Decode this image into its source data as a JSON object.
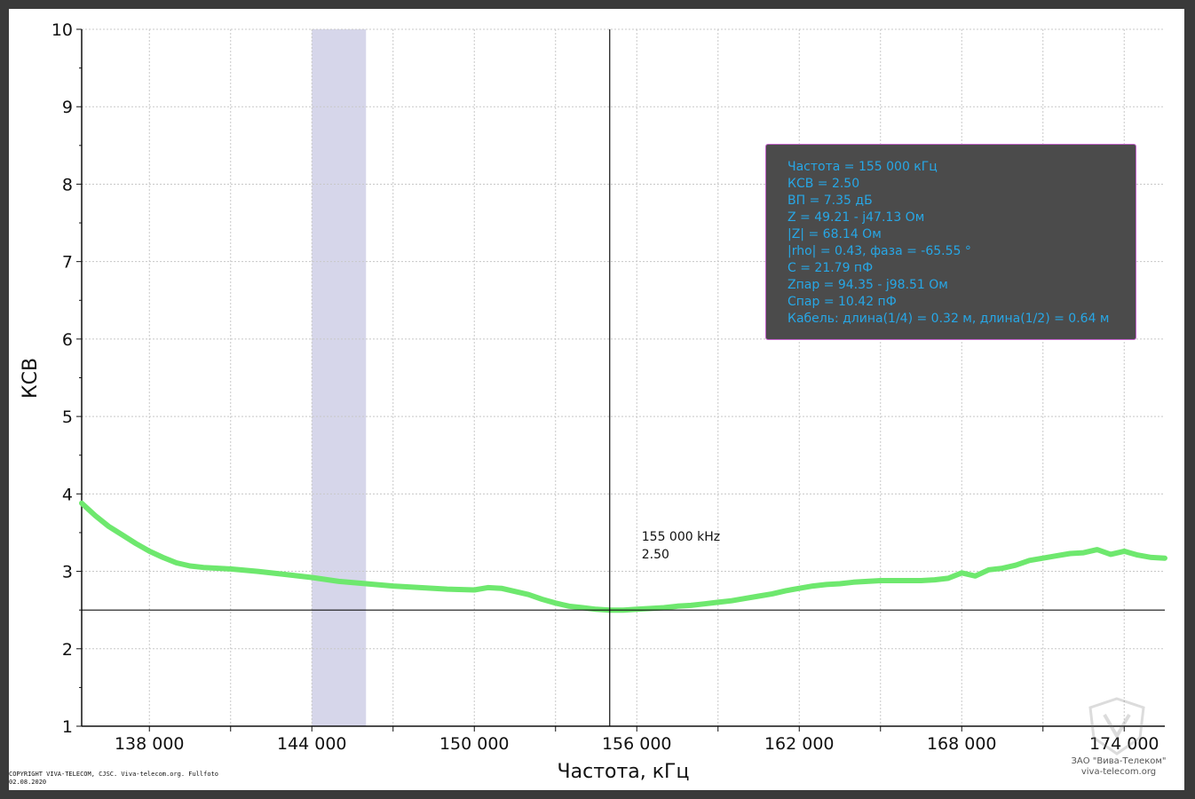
{
  "chart_data": {
    "type": "line",
    "xlabel": "Частота, кГц",
    "ylabel": "КСВ",
    "xlim": [
      135500,
      175500
    ],
    "ylim": [
      1,
      10
    ],
    "grid": true,
    "x_ticks": [
      {
        "value": 138000,
        "label": "138 000"
      },
      {
        "value": 141000,
        "label": ""
      },
      {
        "value": 144000,
        "label": "144 000"
      },
      {
        "value": 147000,
        "label": ""
      },
      {
        "value": 150000,
        "label": "150 000"
      },
      {
        "value": 153000,
        "label": ""
      },
      {
        "value": 156000,
        "label": "156 000"
      },
      {
        "value": 159000,
        "label": ""
      },
      {
        "value": 162000,
        "label": "162 000"
      },
      {
        "value": 165000,
        "label": ""
      },
      {
        "value": 168000,
        "label": "168 000"
      },
      {
        "value": 171000,
        "label": ""
      },
      {
        "value": 174000,
        "label": "174 000"
      }
    ],
    "y_ticks": [
      {
        "value": 1,
        "label": "1"
      },
      {
        "value": 2,
        "label": "2"
      },
      {
        "value": 3,
        "label": "3"
      },
      {
        "value": 4,
        "label": "4"
      },
      {
        "value": 5,
        "label": "5"
      },
      {
        "value": 6,
        "label": "6"
      },
      {
        "value": 7,
        "label": "7"
      },
      {
        "value": 8,
        "label": "8"
      },
      {
        "value": 9,
        "label": "9"
      },
      {
        "value": 10,
        "label": "10"
      }
    ],
    "band": {
      "x_start": 144000,
      "x_end": 146000,
      "color": "#d6d6ea"
    },
    "series": [
      {
        "color": "#6ee86e",
        "x": [
          135500,
          136000,
          136500,
          137000,
          137500,
          138000,
          138500,
          139000,
          139500,
          140000,
          141000,
          142000,
          143000,
          144000,
          145000,
          146000,
          147000,
          148000,
          149000,
          150000,
          150500,
          151000,
          151500,
          152000,
          152500,
          153000,
          153500,
          154000,
          154500,
          155000,
          155500,
          156000,
          156500,
          157000,
          157500,
          158000,
          158500,
          159000,
          159500,
          160000,
          160500,
          161000,
          161500,
          162000,
          162500,
          163000,
          163500,
          164000,
          164500,
          165000,
          165500,
          166000,
          166500,
          167000,
          167500,
          168000,
          168500,
          169000,
          169500,
          170000,
          170500,
          171000,
          171500,
          172000,
          172500,
          173000,
          173500,
          174000,
          174500,
          175000,
          175500
        ],
        "y": [
          3.88,
          3.72,
          3.58,
          3.47,
          3.36,
          3.26,
          3.18,
          3.11,
          3.07,
          3.05,
          3.03,
          3.0,
          2.96,
          2.92,
          2.87,
          2.84,
          2.81,
          2.79,
          2.77,
          2.76,
          2.79,
          2.78,
          2.74,
          2.7,
          2.64,
          2.59,
          2.55,
          2.53,
          2.51,
          2.5,
          2.5,
          2.51,
          2.52,
          2.53,
          2.55,
          2.56,
          2.58,
          2.6,
          2.62,
          2.65,
          2.68,
          2.71,
          2.75,
          2.78,
          2.81,
          2.83,
          2.84,
          2.86,
          2.87,
          2.88,
          2.88,
          2.88,
          2.88,
          2.89,
          2.91,
          2.98,
          2.94,
          3.02,
          3.04,
          3.08,
          3.14,
          3.17,
          3.2,
          3.23,
          3.24,
          3.28,
          3.22,
          3.26,
          3.21,
          3.18,
          3.17
        ]
      }
    ],
    "cursor": {
      "x": 155000,
      "y": 2.5,
      "label_x": "155 000 kHz",
      "label_y": "2.50"
    }
  },
  "info": {
    "lines": [
      "Частота = 155 000 кГц",
      "КСВ = 2.50",
      "ВП = 7.35 дБ",
      "Z = 49.21 - j47.13 Ом",
      "|Z| = 68.14 Ом",
      "|rho| = 0.43, фаза = -65.55 °",
      "C = 21.79 пФ",
      "Zпар = 94.35 - j98.51 Ом",
      "Cпар = 10.42 пФ",
      "Кабель: длина(1/4) = 0.32 м, длина(1/2) = 0.64 м"
    ]
  },
  "footer": {
    "copyright_line1": "COPYRIGHT VIVA-TELECOM, CJSC. Viva-telecom.org. Fullfoto",
    "copyright_line2": "02.08.2020",
    "brand_line1": "ЗАО \"Вива-Телеком\"",
    "brand_line2": "viva-telecom.org"
  },
  "colors": {
    "curve": "#6ee86e",
    "band": "#d6d6ea",
    "info_text": "#27a7e6",
    "info_bg": "#4b4b4b",
    "info_border": "#c060c8"
  }
}
